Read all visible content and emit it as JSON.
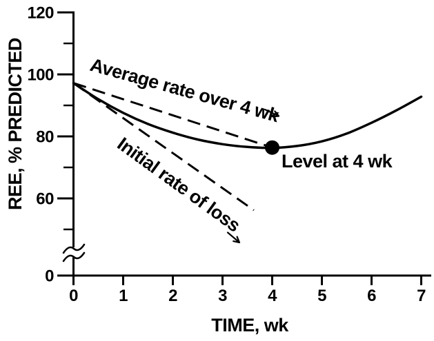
{
  "figure": {
    "background": "#ffffff",
    "ink": "#000000"
  },
  "chart_data": {
    "type": "line",
    "title": "",
    "xlabel": "TIME, wk",
    "ylabel": "REE, % PREDICTED",
    "x_ticks": [
      0,
      1,
      2,
      3,
      4,
      5,
      6,
      7
    ],
    "y_major_ticks": [
      120,
      100,
      80,
      60
    ],
    "y_minor_ticks": [
      110,
      90,
      70,
      50
    ],
    "y_zero_label": "0",
    "y_axis_break_between": [
      0,
      50
    ],
    "xlim": [
      0,
      7
    ],
    "ylim": [
      0,
      120
    ],
    "grid": false,
    "legend": "none",
    "series": [
      {
        "name": "ree-curve",
        "style": "solid",
        "x": [
          0,
          0.5,
          1,
          1.5,
          2,
          2.5,
          3,
          3.5,
          4,
          4.5,
          5,
          5.5,
          6,
          6.5,
          7
        ],
        "y": [
          97.2,
          92.0,
          87.6,
          84.0,
          81.2,
          79.0,
          77.5,
          76.6,
          76.3,
          76.9,
          78.4,
          80.9,
          84.4,
          88.4,
          92.8
        ]
      },
      {
        "name": "average-rate-line",
        "label": "Average rate over 4 wk",
        "style": "dashed",
        "x": [
          0,
          4
        ],
        "y": [
          97.2,
          76.4
        ]
      },
      {
        "name": "initial-rate-line",
        "label": "Initial rate of loss",
        "style": "dashed",
        "x": [
          0,
          3.63
        ],
        "y": [
          97.2,
          56.2
        ]
      }
    ],
    "marker": {
      "x": 4,
      "y": 76.4
    },
    "annotations": [
      {
        "id": "average-rate",
        "text": "Average rate over 4 wk",
        "rotation_deg": 15.5
      },
      {
        "id": "initial-rate",
        "text": "Initial rate of loss",
        "rotation_deg": 36
      },
      {
        "id": "level-at-4wk",
        "text": "Level at 4 wk",
        "rotation_deg": 0
      }
    ]
  }
}
